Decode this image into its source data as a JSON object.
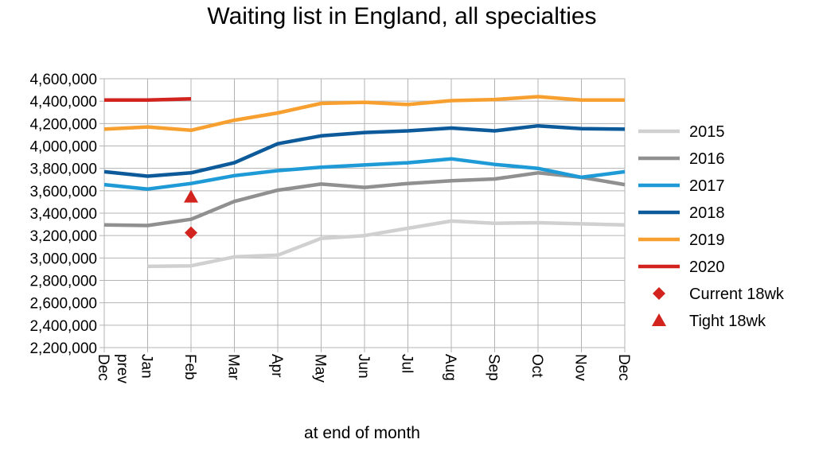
{
  "chart_data": {
    "type": "line",
    "title": "Waiting list in England, all specialties",
    "xlabel": "at end of month",
    "ylabel": "",
    "ylim": [
      2200000,
      4600000
    ],
    "ytick_step": 200000,
    "categories": [
      "Dec prev",
      "Jan",
      "Feb",
      "Mar",
      "Apr",
      "May",
      "Jun",
      "Jul",
      "Aug",
      "Sep",
      "Oct",
      "Nov",
      "Dec"
    ],
    "grid": true,
    "legend_position": "right",
    "series": [
      {
        "name": "2015",
        "color": "#d0d0d0",
        "values": [
          null,
          2925000,
          2930000,
          3010000,
          3025000,
          3175000,
          3200000,
          3265000,
          3330000,
          3310000,
          3315000,
          3305000,
          3295000
        ]
      },
      {
        "name": "2016",
        "color": "#909090",
        "values": [
          3295000,
          3290000,
          3345000,
          3505000,
          3605000,
          3660000,
          3630000,
          3665000,
          3690000,
          3705000,
          3760000,
          3720000,
          3655000
        ]
      },
      {
        "name": "2017",
        "color": "#1e9ad6",
        "values": [
          3655000,
          3615000,
          3665000,
          3735000,
          3780000,
          3810000,
          3830000,
          3850000,
          3885000,
          3835000,
          3800000,
          3720000,
          3770000
        ]
      },
      {
        "name": "2018",
        "color": "#0c5a9a",
        "values": [
          3770000,
          3730000,
          3760000,
          3850000,
          4020000,
          4090000,
          4120000,
          4135000,
          4160000,
          4135000,
          4180000,
          4155000,
          4150000
        ]
      },
      {
        "name": "2019",
        "color": "#f7a030",
        "values": [
          4150000,
          4170000,
          4140000,
          4230000,
          4295000,
          4380000,
          4390000,
          4370000,
          4405000,
          4415000,
          4440000,
          4410000,
          4410000
        ]
      },
      {
        "name": "2020",
        "color": "#d2231e",
        "values": [
          4410000,
          4410000,
          4420000,
          null,
          null,
          null,
          null,
          null,
          null,
          null,
          null,
          null,
          null
        ]
      }
    ],
    "markers": [
      {
        "name": "Current 18wk",
        "shape": "diamond",
        "color": "#d2231e",
        "category": "Feb",
        "value": 3225000
      },
      {
        "name": "Tight 18wk",
        "shape": "triangle",
        "color": "#d2231e",
        "category": "Feb",
        "value": 3545000
      }
    ]
  }
}
